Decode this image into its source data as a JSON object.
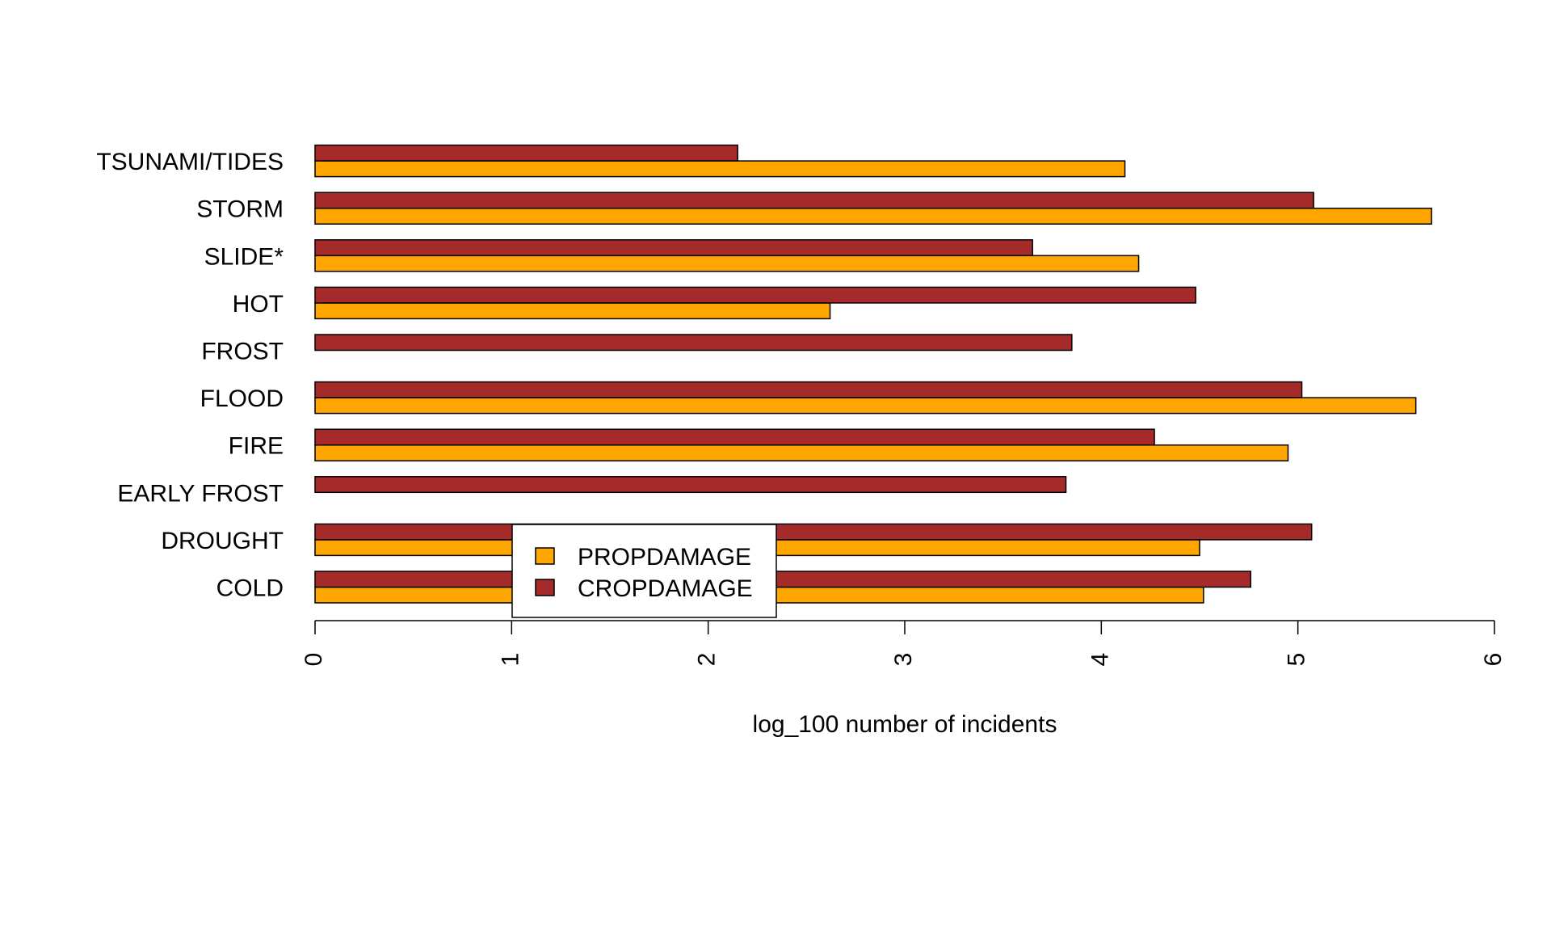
{
  "chart_data": {
    "type": "bar",
    "orientation": "horizontal",
    "categories": [
      "COLD",
      "DROUGHT",
      "EARLY FROST",
      "FIRE",
      "FLOOD",
      "FROST",
      "HOT",
      "SLIDE*",
      "STORM",
      "TSUNAMI/TIDES"
    ],
    "series": [
      {
        "name": "PROPDAMAGE",
        "color": "#FFA500",
        "values": [
          4.52,
          4.5,
          0,
          4.95,
          5.6,
          0,
          2.62,
          4.19,
          5.68,
          4.12
        ]
      },
      {
        "name": "CROPDAMAGE",
        "color": "#A52A2A",
        "values": [
          4.76,
          5.07,
          3.82,
          4.27,
          5.02,
          3.85,
          4.48,
          3.65,
          5.08,
          2.15
        ]
      }
    ],
    "xlabel": "log_100 number of incidents",
    "ylabel": "",
    "xlim": [
      0,
      6
    ],
    "xticks": [
      "0",
      "1",
      "2",
      "3",
      "4",
      "5",
      "6"
    ],
    "grid": false,
    "legend": {
      "placement": "bottom-left",
      "entries": [
        "PROPDAMAGE",
        "CROPDAMAGE"
      ]
    }
  }
}
